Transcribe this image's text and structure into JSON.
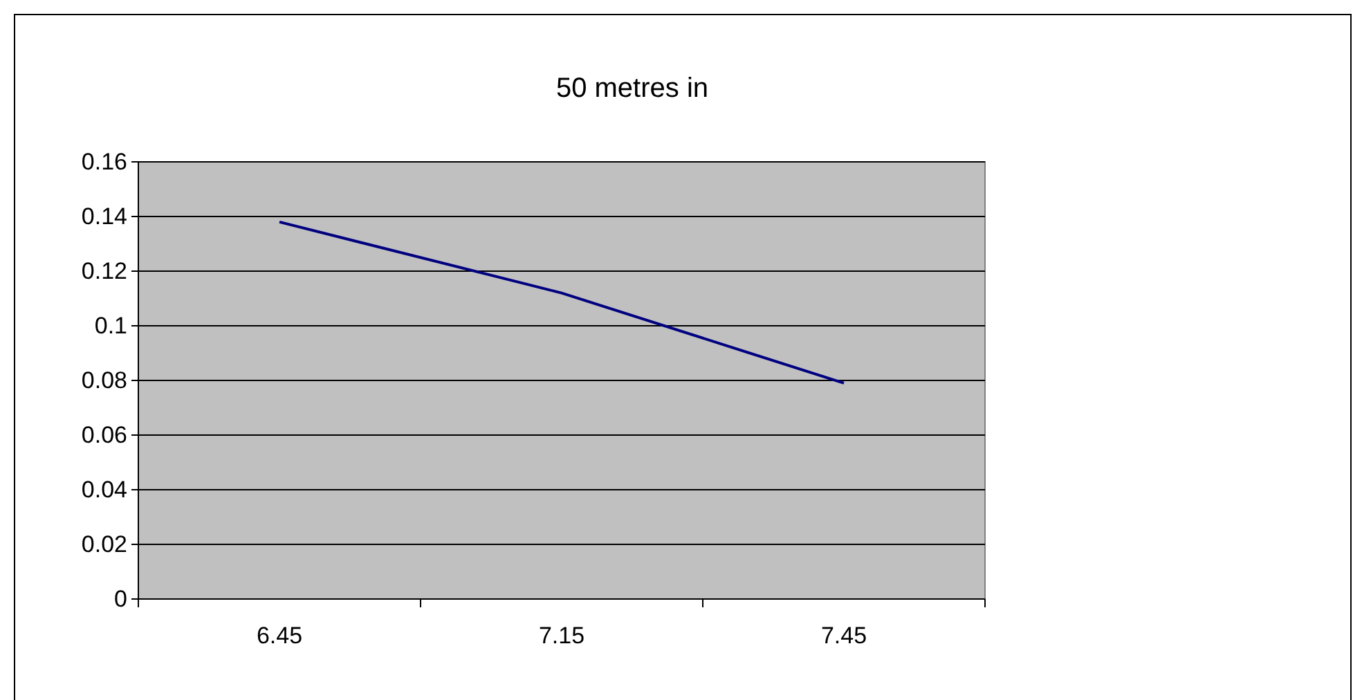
{
  "chart_data": {
    "type": "line",
    "title": "50 metres in",
    "categories": [
      "6.45",
      "7.15",
      "7.45"
    ],
    "series": [
      {
        "color": "#000080",
        "values": [
          0.138,
          0.112,
          0.079
        ]
      }
    ],
    "ylim": [
      0,
      0.16
    ],
    "yticks": [
      0,
      0.02,
      0.04,
      0.06,
      0.08,
      0.1,
      0.12,
      0.14,
      0.16
    ],
    "grid": "y",
    "marker": "none"
  }
}
